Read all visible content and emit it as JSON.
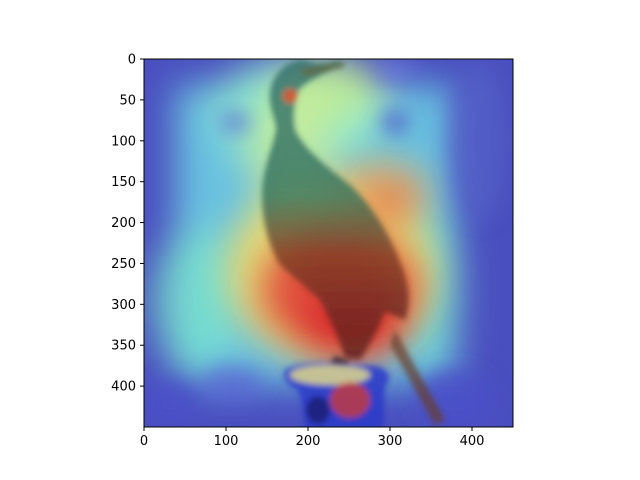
{
  "image": {
    "subject": "cormorant-bird-on-post",
    "overlay": "heatmap-jet-colormap"
  },
  "axes": {
    "x_ticks": [
      "0",
      "100",
      "200",
      "300",
      "400"
    ],
    "y_ticks": [
      "0",
      "50",
      "100",
      "150",
      "200",
      "250",
      "300",
      "350",
      "400"
    ]
  },
  "chart_data": {
    "type": "heatmap",
    "xlim": [
      0,
      450
    ],
    "ylim": [
      450,
      0
    ],
    "x_tick_values": [
      0,
      100,
      200,
      300,
      400
    ],
    "y_tick_values": [
      0,
      50,
      100,
      150,
      200,
      250,
      300,
      350,
      400
    ],
    "colormap": "jet",
    "grid": false
  },
  "colors": {
    "background": "#ffffff",
    "low": "#4a50c8",
    "mid": "#6fe3d0",
    "high": "#d8262e"
  }
}
